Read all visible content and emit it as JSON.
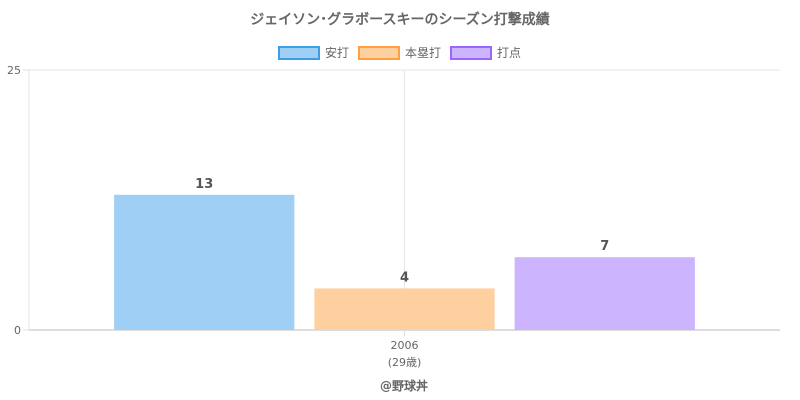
{
  "chart_data": {
    "type": "bar",
    "title": "ジェイソン･グラボースキーのシーズン打撃成績",
    "categories": [
      "2006"
    ],
    "category_sublabels": [
      "(29歳)"
    ],
    "series": [
      {
        "name": "安打",
        "values": [
          13
        ],
        "color": "#9fcff5",
        "border": "#3d9ee8"
      },
      {
        "name": "本塁打",
        "values": [
          4
        ],
        "color": "#ffd09f",
        "border": "#ff9f40"
      },
      {
        "name": "打点",
        "values": [
          7
        ],
        "color": "#cdb4ff",
        "border": "#9966ff"
      }
    ],
    "ylim": [
      0,
      25
    ],
    "yticks": [
      0,
      25
    ],
    "grid": true,
    "legend_position": "top",
    "credit": "@野球丼"
  }
}
